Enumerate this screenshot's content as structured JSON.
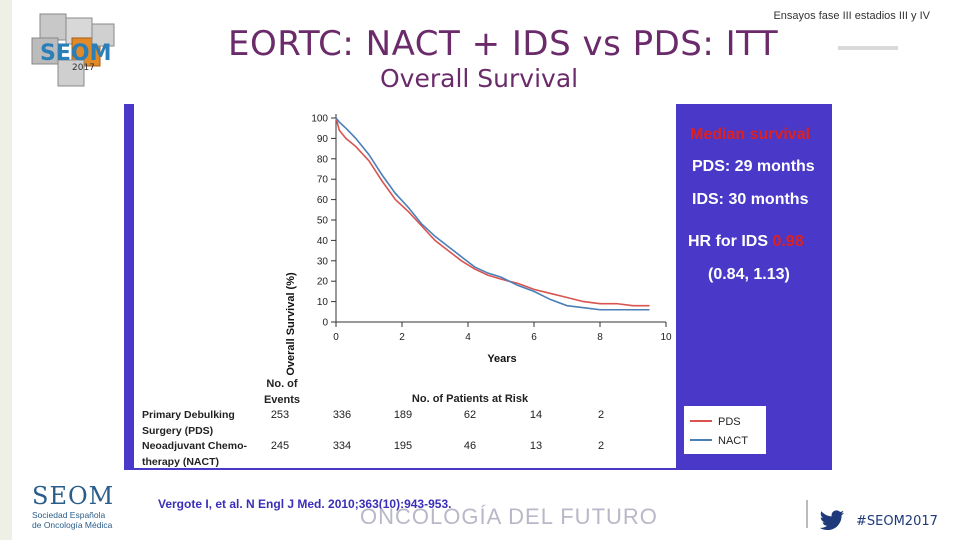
{
  "header": {
    "note": "Ensayos fase III estadios III y IV",
    "title": "EORTC: NACT + IDS vs PDS: ITT",
    "subtitle": "Overall Survival",
    "logo_text": "SEOM",
    "logo_year": "2017"
  },
  "median_panel": {
    "heading": "Median survival",
    "pds": "PDS: 29 months",
    "ids": "IDS: 30 months",
    "hr_label": "HR for IDS",
    "hr_value": "0.98",
    "ci": "(0.84, 1.13)"
  },
  "chart_data": {
    "type": "line",
    "title": "Overall Survival",
    "xlabel": "Years",
    "ylabel": "Overall Survival (%)",
    "xlim": [
      0,
      10
    ],
    "ylim": [
      0,
      100
    ],
    "xticks": [
      0,
      2,
      4,
      6,
      8,
      10
    ],
    "yticks": [
      0,
      10,
      20,
      30,
      40,
      50,
      60,
      70,
      80,
      90,
      100
    ],
    "series": [
      {
        "name": "PDS",
        "color": "#d9534f",
        "x": [
          0,
          0.1,
          0.3,
          0.6,
          1.0,
          1.4,
          1.8,
          2.2,
          2.6,
          3.0,
          3.4,
          3.8,
          4.2,
          4.6,
          5.0,
          5.5,
          6.0,
          6.5,
          7.0,
          7.5,
          8.0,
          8.5,
          9.0,
          9.5
        ],
        "y": [
          100,
          94,
          90,
          86,
          79,
          69,
          60,
          54,
          47,
          40,
          35,
          30,
          26,
          23,
          21,
          19,
          16,
          14,
          12,
          10,
          9,
          9,
          8,
          8
        ]
      },
      {
        "name": "NACT",
        "color": "#4a7fb8",
        "x": [
          0,
          0.1,
          0.3,
          0.6,
          1.0,
          1.4,
          1.8,
          2.2,
          2.6,
          3.0,
          3.4,
          3.8,
          4.2,
          4.6,
          5.0,
          5.5,
          6.0,
          6.5,
          7.0,
          7.5,
          8.0,
          8.5,
          9.0,
          9.5
        ],
        "y": [
          100,
          98,
          95,
          90,
          82,
          72,
          63,
          56,
          48,
          42,
          37,
          32,
          27,
          24,
          22,
          18,
          15,
          11,
          8,
          7,
          6,
          6,
          6,
          6
        ]
      }
    ],
    "risk_table": {
      "events_header": "No. of Events",
      "patients_header": "No. of Patients at Risk",
      "rows": [
        {
          "label": "Primary Debulking Surgery (PDS)",
          "label1": "Primary Debulking",
          "label2": "Surgery (PDS)",
          "events": "253",
          "values": [
            "336",
            "189",
            "62",
            "14",
            "2"
          ]
        },
        {
          "label": "Neoadjuvant Chemotherapy (NACT)",
          "label1": "Neoadjuvant Chemo-",
          "label2": "therapy (NACT)",
          "events": "245",
          "values": [
            "334",
            "195",
            "46",
            "13",
            "2"
          ]
        }
      ]
    },
    "legend": [
      "PDS",
      "NACT"
    ]
  },
  "footer": {
    "org": "SEOM",
    "org_sub1": "Sociedad Española",
    "org_sub2": "de Oncología Médica",
    "reference": "Vergote I, et al. N Engl J Med. 2010;363(10):943-953.",
    "tagline": "ONCOLOGÍA DEL FUTURO",
    "hashtag": "#SEOM2017"
  },
  "colors": {
    "title": "#6b2a6a",
    "panel": "#4a39c9",
    "median_red": "#e0201c",
    "median_white": "#ffffff"
  }
}
